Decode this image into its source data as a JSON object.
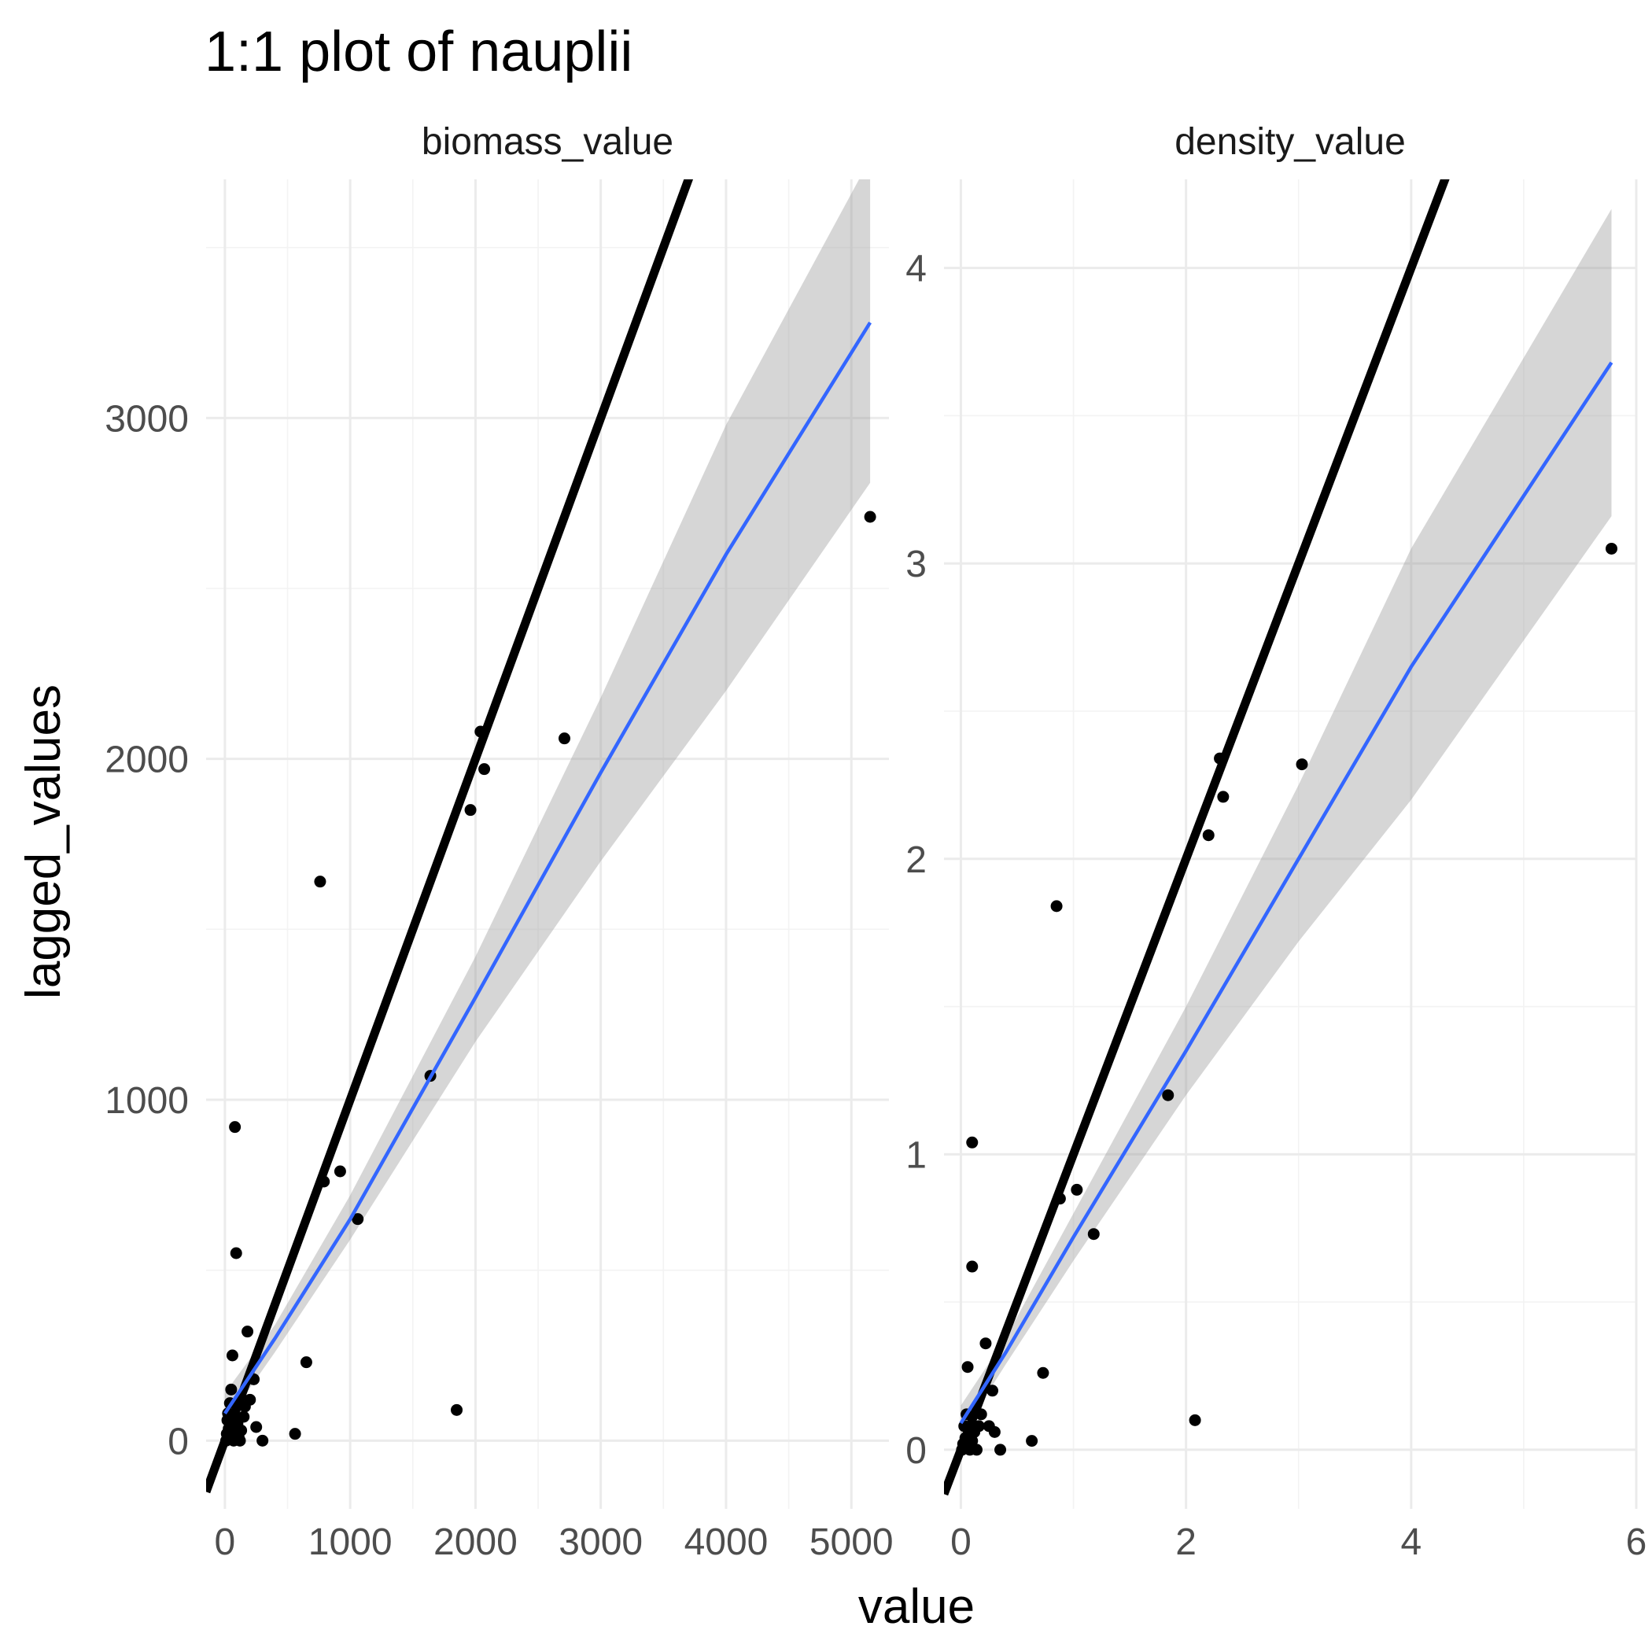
{
  "chart_data": {
    "type": "scatter",
    "title": "1:1 plot of nauplii",
    "xlabel": "value",
    "ylabel": "lagged_values",
    "colors": {
      "points": "#000000",
      "identity_line": "#000000",
      "fit_line": "#3366FF",
      "ribbon": "#999999"
    },
    "panels": [
      {
        "name": "biomass_value",
        "xlim": [
          -150,
          5300
        ],
        "ylim": [
          -200,
          3700
        ],
        "xticks": [
          0,
          1000,
          2000,
          3000,
          4000,
          5000
        ],
        "xtick_labels": [
          "0",
          "1000",
          "2000",
          "3000",
          "4000",
          "5000"
        ],
        "yticks": [
          0,
          1000,
          2000,
          3000
        ],
        "ytick_labels": [
          "0",
          "1000",
          "2000",
          "3000"
        ],
        "points": [
          [
            10,
            0
          ],
          [
            15,
            20
          ],
          [
            20,
            60
          ],
          [
            25,
            80
          ],
          [
            30,
            35
          ],
          [
            40,
            110
          ],
          [
            50,
            150
          ],
          [
            60,
            250
          ],
          [
            70,
            0
          ],
          [
            80,
            30
          ],
          [
            100,
            50
          ],
          [
            110,
            10
          ],
          [
            120,
            0
          ],
          [
            130,
            30
          ],
          [
            150,
            70
          ],
          [
            160,
            100
          ],
          [
            180,
            320
          ],
          [
            200,
            120
          ],
          [
            230,
            180
          ],
          [
            250,
            40
          ],
          [
            300,
            0
          ],
          [
            560,
            20
          ],
          [
            650,
            230
          ],
          [
            80,
            920
          ],
          [
            90,
            550
          ],
          [
            760,
            1640
          ],
          [
            790,
            760
          ],
          [
            920,
            790
          ],
          [
            1060,
            650
          ],
          [
            1640,
            1070
          ],
          [
            1850,
            90
          ],
          [
            1960,
            1850
          ],
          [
            2040,
            2080
          ],
          [
            2070,
            1970
          ],
          [
            2710,
            2060
          ],
          [
            5150,
            2710
          ]
        ],
        "identity_line": {
          "slope": 1,
          "intercept": 0
        },
        "fit": {
          "x": [
            0,
            400,
            1000,
            2000,
            3000,
            4000,
            5150
          ],
          "y": [
            80,
            300,
            650,
            1300,
            1960,
            2600,
            3280
          ],
          "lower": [
            50,
            260,
            590,
            1170,
            1700,
            2200,
            2810
          ],
          "upper": [
            140,
            340,
            720,
            1420,
            2180,
            2980,
            3760
          ]
        }
      },
      {
        "name": "density_value",
        "xlim": [
          -0.15,
          6.0
        ],
        "ylim": [
          -0.2,
          4.3
        ],
        "xticks": [
          0,
          2,
          4,
          6
        ],
        "xtick_labels": [
          "0",
          "2",
          "4",
          "6"
        ],
        "yticks": [
          0,
          1,
          2,
          3,
          4
        ],
        "ytick_labels": [
          "0",
          "1",
          "2",
          "3",
          "4"
        ],
        "points": [
          [
            0.01,
            0.0
          ],
          [
            0.02,
            0.02
          ],
          [
            0.03,
            0.08
          ],
          [
            0.04,
            0.04
          ],
          [
            0.05,
            0.12
          ],
          [
            0.06,
            0.28
          ],
          [
            0.08,
            0.0
          ],
          [
            0.1,
            0.03
          ],
          [
            0.12,
            0.06
          ],
          [
            0.14,
            0.0
          ],
          [
            0.16,
            0.08
          ],
          [
            0.18,
            0.12
          ],
          [
            0.22,
            0.36
          ],
          [
            0.25,
            0.08
          ],
          [
            0.28,
            0.2
          ],
          [
            0.3,
            0.06
          ],
          [
            0.35,
            0.0
          ],
          [
            0.63,
            0.03
          ],
          [
            0.73,
            0.26
          ],
          [
            0.1,
            1.04
          ],
          [
            0.1,
            0.62
          ],
          [
            0.85,
            1.84
          ],
          [
            0.88,
            0.85
          ],
          [
            1.03,
            0.88
          ],
          [
            1.18,
            0.73
          ],
          [
            1.84,
            1.2
          ],
          [
            2.08,
            0.1
          ],
          [
            2.2,
            2.08
          ],
          [
            2.3,
            2.34
          ],
          [
            2.33,
            2.21
          ],
          [
            3.03,
            2.32
          ],
          [
            5.78,
            3.05
          ]
        ],
        "identity_line": {
          "slope": 1,
          "intercept": 0
        },
        "fit": {
          "x": [
            0,
            0.4,
            1.0,
            2.0,
            3.0,
            4.0,
            5.78
          ],
          "y": [
            0.09,
            0.33,
            0.72,
            1.35,
            2.0,
            2.65,
            3.68
          ],
          "lower": [
            0.05,
            0.29,
            0.64,
            1.2,
            1.72,
            2.2,
            3.16
          ],
          "upper": [
            0.15,
            0.38,
            0.8,
            1.5,
            2.25,
            3.05,
            4.2
          ]
        }
      }
    ]
  }
}
